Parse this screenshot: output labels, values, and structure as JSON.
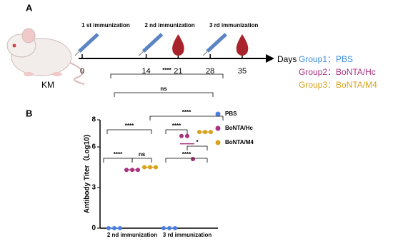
{
  "timeline": {
    "label": "A",
    "strain": "KM",
    "unit": "Days",
    "events": [
      {
        "day": 0,
        "label": "1 st immunization"
      },
      {
        "day": 14,
        "label": "2 nd immunization"
      },
      {
        "day": 28,
        "label": "3 rd immunization"
      }
    ],
    "bleeds": [
      21,
      35
    ],
    "ticks": [
      0,
      14,
      21,
      28,
      35
    ],
    "groups": [
      {
        "label": "Group1：PBS",
        "color": "#3b8ee0"
      },
      {
        "label": "Group2：BoNTA/Hc",
        "color": "#a8327f"
      },
      {
        "label": "Group3：BoNTA/M4",
        "color": "#d9a21b"
      }
    ]
  },
  "chart_data": {
    "type": "dot",
    "label": "B",
    "ylabel": "Antibody  Titer（Log10)",
    "categories": [
      "2 nd immunization",
      "3 rd  immunization"
    ],
    "ylim": [
      0,
      8
    ],
    "yticks": [
      0,
      3,
      6,
      8
    ],
    "series": [
      {
        "name": "PBS",
        "color": "#4a7fe0",
        "values": [
          [
            0,
            0,
            0
          ],
          [
            0,
            0,
            0
          ]
        ]
      },
      {
        "name": "BoNTA/Hc",
        "color": "#a8327f",
        "values": [
          [
            4.3,
            4.3,
            4.3
          ],
          [
            6.8,
            6.8,
            5.1
          ]
        ]
      },
      {
        "name": "BoNTA/M4",
        "color": "#d9a21b",
        "values": [
          [
            4.5,
            4.5,
            4.5
          ],
          [
            7.1,
            7.1,
            7.1
          ]
        ]
      }
    ],
    "annotations": [
      "****",
      "ns",
      "****",
      "****",
      "****",
      "ns",
      "****",
      "****",
      "*"
    ]
  }
}
